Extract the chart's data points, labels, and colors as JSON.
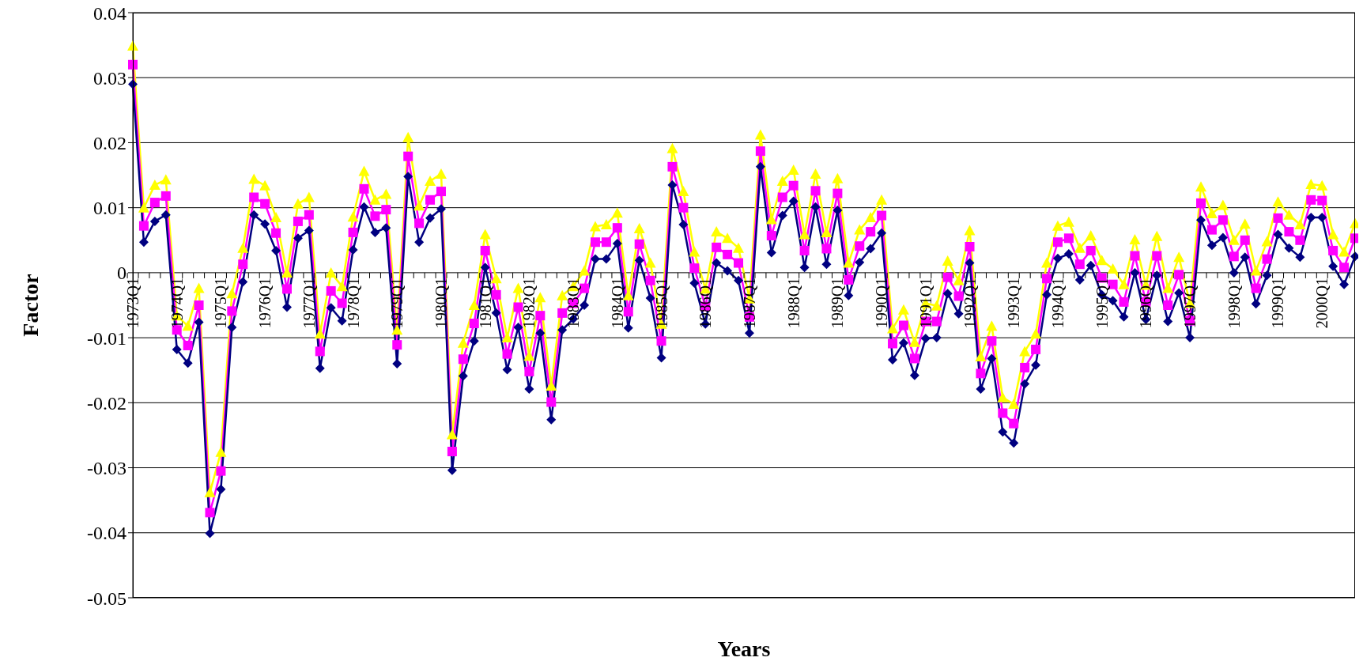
{
  "chart_data": {
    "type": "line",
    "xlabel": "Years",
    "ylabel": "Factor",
    "categories": [
      "1973Q1",
      null,
      null,
      null,
      "1974Q1",
      null,
      null,
      null,
      "1975Q1",
      null,
      null,
      null,
      "1976Q1",
      null,
      null,
      null,
      "1977Q1",
      null,
      null,
      null,
      "1978Q1",
      null,
      null,
      null,
      "1979Q1",
      null,
      null,
      null,
      "1980Q1",
      null,
      null,
      null,
      "1981Q1",
      null,
      null,
      null,
      "1982Q1",
      null,
      null,
      null,
      "1983Q1",
      null,
      null,
      null,
      "1984Q1",
      null,
      null,
      null,
      "1985Q1",
      null,
      null,
      null,
      "1986Q1",
      null,
      null,
      null,
      "1987Q1",
      null,
      null,
      null,
      "1988Q1",
      null,
      null,
      null,
      "1989Q1",
      null,
      null,
      null,
      "1990Q1",
      null,
      null,
      null,
      "1991Q1",
      null,
      null,
      null,
      "1992Q1",
      null,
      null,
      null,
      "1993Q1",
      null,
      null,
      null,
      "1994Q1",
      null,
      null,
      null,
      "1995Q1",
      null,
      null,
      null,
      "1996Q1",
      null,
      null,
      null,
      "1997Q1",
      null,
      null,
      null,
      "1998Q1",
      null,
      null,
      null,
      "1999Q1",
      null,
      null,
      null,
      "2000Q1",
      null,
      null,
      null
    ],
    "series": [
      {
        "color": "#ffff00",
        "marker": "triangle",
        "values": [
          0.0349,
          0.01,
          0.0135,
          0.0143,
          -0.0066,
          -0.0082,
          -0.0024,
          -0.0338,
          -0.0276,
          -0.0032,
          0.0038,
          0.0144,
          0.0134,
          0.0085,
          0,
          0.0106,
          0.0116,
          -0.0094,
          0,
          -0.0021,
          0.0086,
          0.0156,
          0.0112,
          0.0121,
          -0.0088,
          0.0208,
          0.0103,
          0.0141,
          0.0152,
          -0.0249,
          -0.0108,
          -0.005,
          0.0059,
          -0.0009,
          -0.01,
          -0.0024,
          -0.0128,
          -0.0038,
          -0.0174,
          -0.0035,
          -0.0021,
          0.0003,
          0.0071,
          0.0074,
          0.0092,
          -0.0035,
          0.0068,
          0.0015,
          -0.0079,
          0.0191,
          0.0125,
          0.0032,
          -0.0025,
          0.0063,
          0.0053,
          0.0038,
          -0.004,
          0.0212,
          0.0082,
          0.0141,
          0.0158,
          0.0059,
          0.0152,
          0.0062,
          0.0145,
          0.0015,
          0.0066,
          0.0085,
          0.0112,
          -0.0086,
          -0.0057,
          -0.0107,
          -0.0047,
          -0.0051,
          0.0018,
          -0.0012,
          0.0065,
          -0.0129,
          -0.0082,
          -0.0192,
          -0.0202,
          -0.0121,
          -0.0094,
          0.0015,
          0.0072,
          0.0078,
          0.0038,
          0.0057,
          0.0019,
          0.0006,
          -0.0018,
          0.0051,
          -0.0019,
          0.0056,
          -0.0024,
          0.0024,
          -0.0047,
          0.0132,
          0.0091,
          0.0104,
          0.005,
          0.0075,
          0.0003,
          0.0048,
          0.0109,
          0.0089,
          0.0074,
          0.0136,
          0.0134,
          0.0059,
          0.0032,
          0.0076
        ]
      },
      {
        "color": "#ff00ff",
        "marker": "square",
        "values": [
          0.032,
          0.0072,
          0.0108,
          0.0118,
          -0.0088,
          -0.0112,
          -0.005,
          -0.0369,
          -0.0305,
          -0.0059,
          0.0013,
          0.0116,
          0.0106,
          0.0061,
          -0.0025,
          0.0079,
          0.0089,
          -0.0121,
          -0.0028,
          -0.0047,
          0.0062,
          0.0129,
          0.0087,
          0.0097,
          -0.0111,
          0.0179,
          0.0076,
          0.0112,
          0.0125,
          -0.0275,
          -0.0133,
          -0.0078,
          0.0034,
          -0.0034,
          -0.0125,
          -0.0053,
          -0.0152,
          -0.0066,
          -0.0199,
          -0.0062,
          -0.0047,
          -0.0024,
          0.0047,
          0.0047,
          0.0069,
          -0.006,
          0.0044,
          -0.0012,
          -0.0105,
          0.0163,
          0.01,
          0.0007,
          -0.0052,
          0.0039,
          0.0028,
          0.0015,
          -0.0068,
          0.0187,
          0.0057,
          0.0116,
          0.0134,
          0.0034,
          0.0126,
          0.0037,
          0.0122,
          -0.0011,
          0.0041,
          0.0063,
          0.0088,
          -0.0109,
          -0.0081,
          -0.0132,
          -0.0075,
          -0.0075,
          -0.0007,
          -0.0036,
          0.004,
          -0.0155,
          -0.0105,
          -0.0216,
          -0.0232,
          -0.0146,
          -0.0118,
          -0.0009,
          0.0047,
          0.0053,
          0.0013,
          0.0034,
          -0.0008,
          -0.0018,
          -0.0045,
          0.0026,
          -0.0045,
          0.0026,
          -0.005,
          -0.0003,
          -0.0074,
          0.0107,
          0.0066,
          0.0081,
          0.0025,
          0.005,
          -0.0024,
          0.0021,
          0.0084,
          0.0063,
          0.005,
          0.0112,
          0.0111,
          0.0034,
          0.0008,
          0.0053
        ]
      },
      {
        "color": "#000080",
        "marker": "diamond",
        "values": [
          0.029,
          0.0047,
          0.0079,
          0.0089,
          -0.0118,
          -0.0139,
          -0.0076,
          -0.0401,
          -0.0333,
          -0.0084,
          -0.0014,
          0.0089,
          0.0075,
          0.0034,
          -0.0053,
          0.0053,
          0.0065,
          -0.0147,
          -0.0054,
          -0.0074,
          0.0035,
          0.0101,
          0.0062,
          0.0069,
          -0.014,
          0.0148,
          0.0047,
          0.0084,
          0.0098,
          -0.0304,
          -0.0159,
          -0.0105,
          0.0008,
          -0.0062,
          -0.0149,
          -0.0084,
          -0.0179,
          -0.0093,
          -0.0226,
          -0.0088,
          -0.0071,
          -0.005,
          0.0021,
          0.0021,
          0.0045,
          -0.0085,
          0.0019,
          -0.0039,
          -0.0131,
          0.0135,
          0.0074,
          -0.0016,
          -0.0079,
          0.0015,
          0.0003,
          -0.0012,
          -0.0093,
          0.0163,
          0.0031,
          0.0088,
          0.011,
          0.0008,
          0.0101,
          0.0013,
          0.0096,
          -0.0035,
          0.0016,
          0.0037,
          0.0061,
          -0.0134,
          -0.0108,
          -0.0158,
          -0.0101,
          -0.01,
          -0.0032,
          -0.0063,
          0.0015,
          -0.0179,
          -0.0132,
          -0.0245,
          -0.0262,
          -0.0171,
          -0.0142,
          -0.0034,
          0.0022,
          0.0029,
          -0.0011,
          0.0011,
          -0.0034,
          -0.0043,
          -0.0068,
          0,
          -0.0072,
          -0.0004,
          -0.0075,
          -0.0031,
          -0.01,
          0.0081,
          0.0042,
          0.0054,
          0,
          0.0024,
          -0.0048,
          -0.0004,
          0.0059,
          0.0038,
          0.0024,
          0.0085,
          0.0085,
          0.001,
          -0.0018,
          0.0025
        ]
      }
    ],
    "ylim": [
      -0.05,
      0.04
    ],
    "yticks": [
      -0.05,
      -0.04,
      -0.03,
      -0.02,
      -0.01,
      0,
      0.01,
      0.02,
      0.03,
      0.04
    ],
    "grid": "y",
    "line_style": "solid"
  }
}
